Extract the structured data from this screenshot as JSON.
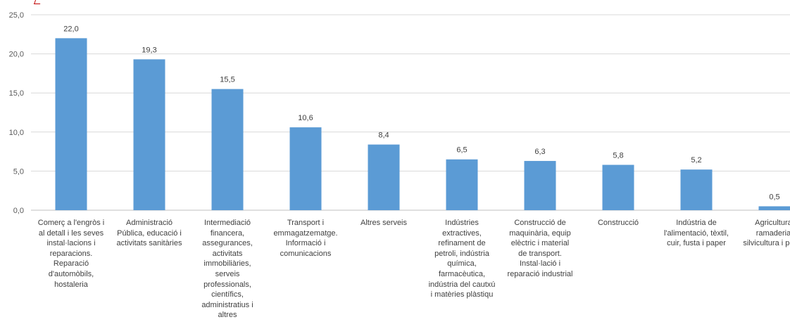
{
  "chart_data": {
    "type": "bar",
    "title": "",
    "xlabel": "",
    "ylabel": "",
    "ylim": [
      0,
      25
    ],
    "yticks": [
      "0,0",
      "5,0",
      "10,0",
      "15,0",
      "20,0",
      "25,0"
    ],
    "grid": true,
    "bar_color": "#5B9BD5",
    "categories": [
      "Comerç a l'engròs i\nal detall i les seves\ninstal·lacions i\nreparacions.\nReparació\nd'automòbils,\nhostaleria",
      "Administració\nPública, educació i\nactivitats sanitàries",
      "Intermediació\nfinancera,\nassegurances,\nactivitats\nimmobiliàries,\nserveis\nprofessionals,\ncientífics,\nadministratius i\naltres",
      "Transport i\nemmagatzematge.\nInformació i\ncomunicacions",
      "Altres serveis",
      "Indústries\nextractives,\nrefinament de\npetroli, indústria\nquímica,\nfarmacèutica,\nindústria del cautxú\ni matèries plàstiqu",
      "Construcció de\nmaquinària, equip\nelèctric i material\nde transport.\nInstal·lació i\nreparació industrial",
      "Construcció",
      "Indústria de\nl'alimentació, tèxtil,\ncuir, fusta i paper",
      "Agricultura,\nramaderia,\nsilvicultura i pesca"
    ],
    "values": [
      22.0,
      19.3,
      15.5,
      10.6,
      8.4,
      6.5,
      6.3,
      5.8,
      5.2,
      0.5
    ],
    "data_labels": [
      "22,0",
      "19,3",
      "15,5",
      "10,6",
      "8,4",
      "6,5",
      "6,3",
      "5,8",
      "5,2",
      "0,5"
    ]
  }
}
